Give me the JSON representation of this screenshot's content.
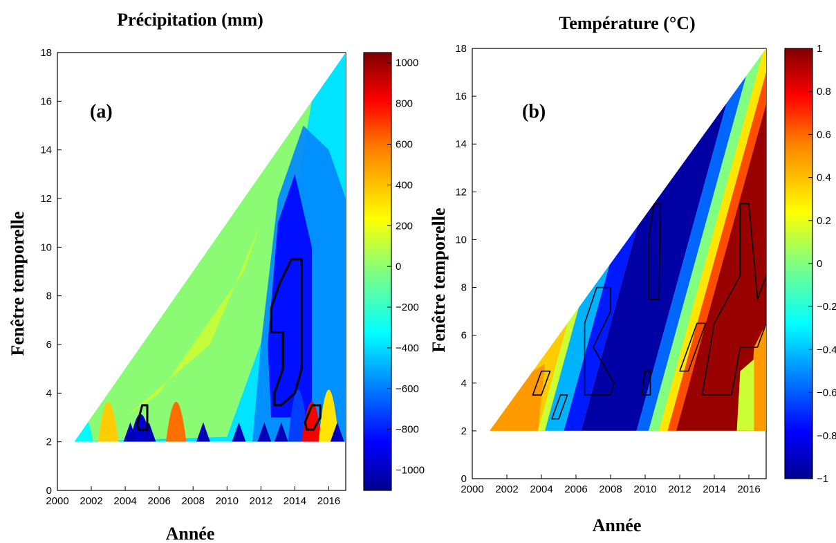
{
  "chart_data": [
    {
      "id": "precipitation",
      "type": "heatmap",
      "title": "Précipitation (mm)",
      "panel_label": "(a)",
      "xlabel": "Année",
      "ylabel": "Fenêtre temporelle",
      "xlim": [
        2000,
        2017
      ],
      "ylim": [
        0,
        18
      ],
      "x_ticks": [
        2000,
        2002,
        2004,
        2006,
        2008,
        2010,
        2012,
        2014,
        2016
      ],
      "y_ticks": [
        0,
        2,
        4,
        6,
        8,
        10,
        12,
        14,
        16,
        18
      ],
      "colorbar": {
        "range": [
          -1100,
          1050
        ],
        "ticks": [
          1000,
          800,
          600,
          400,
          200,
          0,
          -200,
          -400,
          -600,
          -800,
          -1000
        ]
      },
      "colorscale": [
        "#00008f",
        "#0000ff",
        "#0080ff",
        "#00ffff",
        "#80ff80",
        "#ffff00",
        "#ff8000",
        "#ff0000",
        "#800000"
      ],
      "domain": "triangle: x from 2001 to 2017, window from 2 to (x - 2001) + 2",
      "grid": false,
      "regions": [
        {
          "x": 2001.5,
          "w": 2,
          "value": -300
        },
        {
          "x": 2003,
          "w": 3,
          "value": 350
        },
        {
          "x": 2004.9,
          "w": 2,
          "value": -950
        },
        {
          "x": 2007,
          "w": 3,
          "value": 550
        },
        {
          "x": 2007.5,
          "w": 6,
          "value": 150
        },
        {
          "x": 2010,
          "w": 6,
          "value": 100
        },
        {
          "x": 2011,
          "w": 8,
          "value": -150
        },
        {
          "x": 2011.5,
          "w": 12,
          "value": -250
        },
        {
          "x": 2013.5,
          "w": 7,
          "value": -800
        },
        {
          "x": 2014.2,
          "w": 4,
          "value": -700
        },
        {
          "x": 2015,
          "w": 3,
          "value": 800
        },
        {
          "x": 2016,
          "w": 4,
          "value": 300
        },
        {
          "x": 2016.8,
          "w": 14,
          "value": -380
        }
      ],
      "significance_contours": [
        [
          [
            2004.8,
            2.5
          ],
          [
            2005.3,
            2.5
          ],
          [
            2005.3,
            3.5
          ],
          [
            2005.0,
            3.5
          ],
          [
            2004.7,
            2.7
          ]
        ],
        [
          [
            2012.8,
            3.5
          ],
          [
            2013.2,
            3.5
          ],
          [
            2014.0,
            4.0
          ],
          [
            2014.4,
            5.0
          ],
          [
            2014.4,
            9.5
          ],
          [
            2013.8,
            9.5
          ],
          [
            2013.1,
            8.5
          ],
          [
            2012.6,
            7.5
          ],
          [
            2012.6,
            6.5
          ],
          [
            2013.3,
            6.5
          ],
          [
            2013.3,
            5.0
          ],
          [
            2012.8,
            4.0
          ]
        ],
        [
          [
            2014.7,
            2.5
          ],
          [
            2015.1,
            2.5
          ],
          [
            2015.5,
            3.0
          ],
          [
            2015.5,
            3.5
          ],
          [
            2015.0,
            3.5
          ],
          [
            2014.6,
            2.8
          ]
        ]
      ]
    },
    {
      "id": "temperature",
      "type": "heatmap",
      "title": "Température (°C)",
      "panel_label": "(b)",
      "xlabel": "Année",
      "ylabel": "Fenêtre temporelle",
      "xlim": [
        2000,
        2017
      ],
      "ylim": [
        0,
        18
      ],
      "x_ticks": [
        2000,
        2002,
        2004,
        2006,
        2008,
        2010,
        2012,
        2014,
        2016
      ],
      "y_ticks": [
        0,
        2,
        4,
        6,
        8,
        10,
        12,
        14,
        16,
        18
      ],
      "colorbar": {
        "range": [
          -1,
          1
        ],
        "ticks": [
          1,
          0.8,
          0.6,
          0.4,
          0.2,
          0,
          -0.2,
          -0.4,
          -0.6,
          -0.8,
          -1
        ]
      },
      "colorscale": [
        "#00008f",
        "#0000ff",
        "#0080ff",
        "#00ffff",
        "#80ff80",
        "#ffff00",
        "#ff8000",
        "#ff0000",
        "#800000"
      ],
      "domain": "triangle: x from 2001 to 2017, window from 2 to (x - 2001) + 2",
      "grid": false,
      "bands": [
        {
          "x0": 2000,
          "slope": 0.0,
          "value": 0.35
        },
        {
          "x0": 2004.5,
          "slope": 0.05,
          "value": -0.5
        },
        {
          "x0": 2005.3,
          "slope": 0.08,
          "value": -0.7
        },
        {
          "x0": 2006.2,
          "slope": 0.1,
          "value": -0.95
        },
        {
          "x0": 2009.5,
          "slope": 0.14,
          "value": -0.6
        },
        {
          "x0": 2010.4,
          "slope": 0.18,
          "value": 0.0
        },
        {
          "x0": 2011.0,
          "slope": 0.22,
          "value": 0.5
        },
        {
          "x0": 2011.6,
          "slope": 0.27,
          "value": 0.95
        }
      ],
      "significance_contours": [
        [
          [
            2003.5,
            3.5
          ],
          [
            2004.0,
            3.5
          ],
          [
            2004.5,
            4.5
          ],
          [
            2004.0,
            4.5
          ]
        ],
        [
          [
            2004.6,
            2.5
          ],
          [
            2005.0,
            2.5
          ],
          [
            2005.5,
            3.5
          ],
          [
            2005.1,
            3.5
          ]
        ],
        [
          [
            2006.5,
            3.5
          ],
          [
            2008.0,
            3.5
          ],
          [
            2008.2,
            4.0
          ],
          [
            2007.0,
            5.5
          ],
          [
            2008.0,
            7.0
          ],
          [
            2008.0,
            8.0
          ],
          [
            2007.2,
            8.0
          ],
          [
            2006.5,
            6.5
          ]
        ],
        [
          [
            2009.8,
            3.5
          ],
          [
            2010.3,
            3.5
          ],
          [
            2010.3,
            4.5
          ],
          [
            2010.0,
            4.5
          ]
        ],
        [
          [
            2010.2,
            7.5
          ],
          [
            2010.8,
            7.5
          ],
          [
            2010.9,
            11.5
          ],
          [
            2010.5,
            11.5
          ],
          [
            2010.2,
            10.0
          ]
        ],
        [
          [
            2012.0,
            4.5
          ],
          [
            2012.5,
            4.5
          ],
          [
            2013.5,
            6.5
          ],
          [
            2013.0,
            6.5
          ]
        ],
        [
          [
            2013.3,
            3.5
          ],
          [
            2015.0,
            3.5
          ],
          [
            2015.5,
            5.5
          ],
          [
            2016.5,
            5.5
          ],
          [
            2017.0,
            6.5
          ],
          [
            2017.0,
            8.5
          ],
          [
            2016.5,
            7.5
          ],
          [
            2016.0,
            11.5
          ],
          [
            2015.5,
            11.5
          ],
          [
            2015.5,
            8.5
          ],
          [
            2014.0,
            6.5
          ]
        ]
      ]
    }
  ]
}
